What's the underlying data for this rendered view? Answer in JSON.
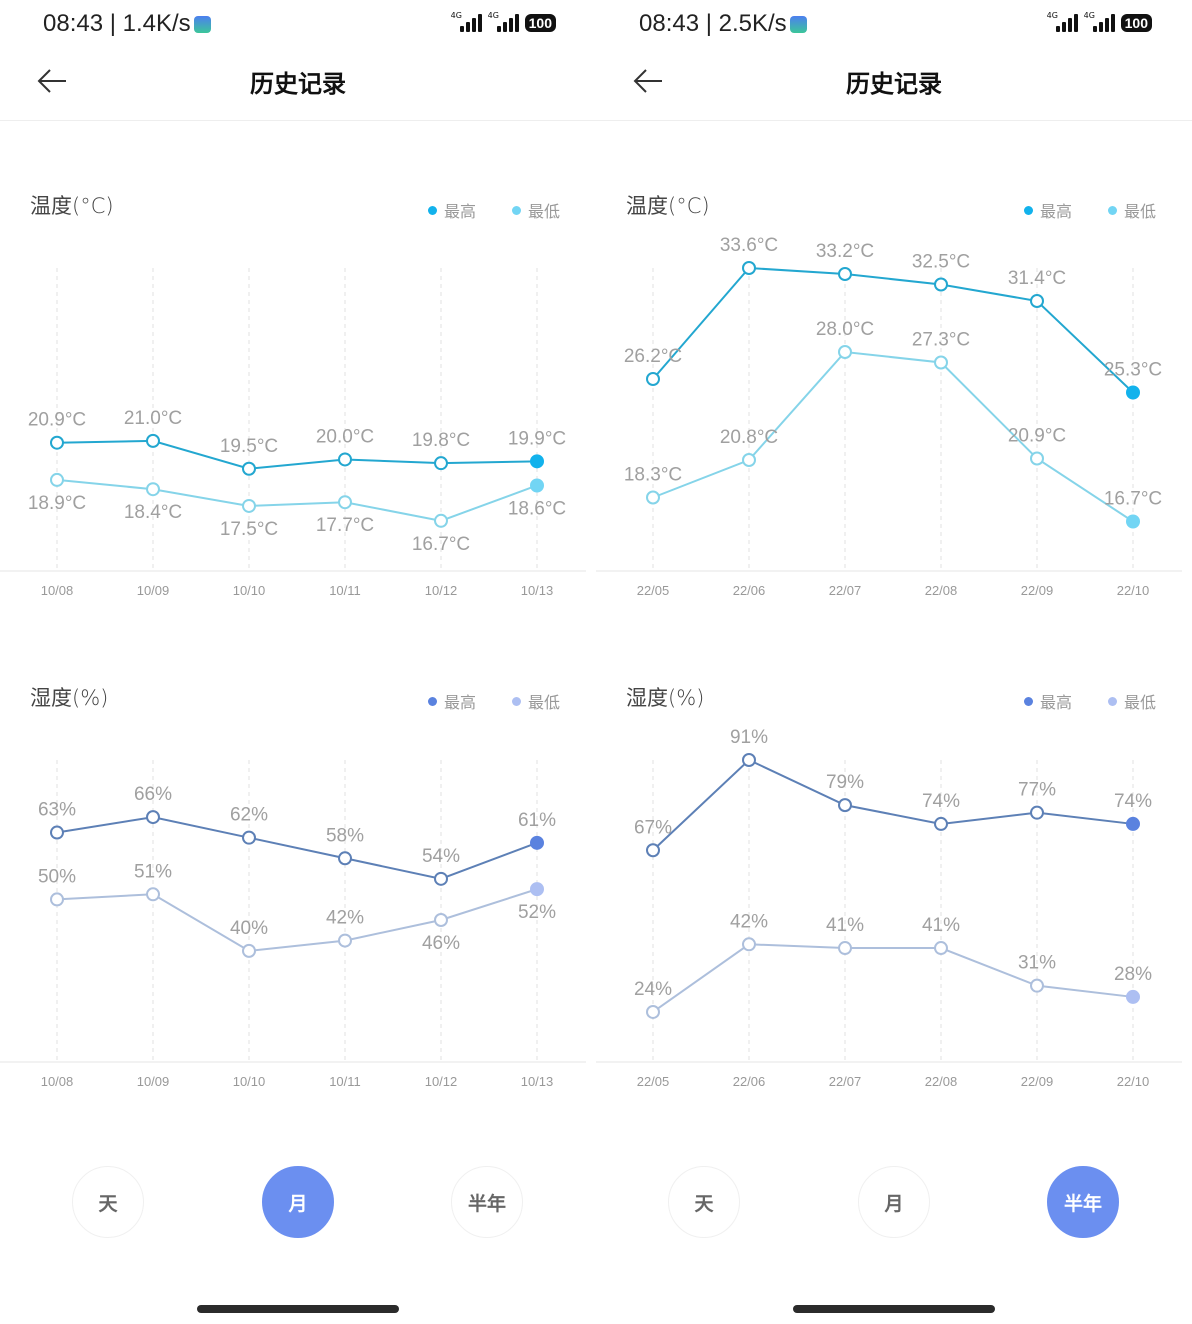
{
  "panels": [
    {
      "status": {
        "time": "08:43 | 1.4K/s",
        "network": "4G",
        "battery": "100"
      },
      "header": {
        "title": "历史记录"
      },
      "temperature": {
        "title": "温度(°C)",
        "legend": [
          "最高",
          "最低"
        ],
        "colors": {
          "max_line": "#23a7d0",
          "max_last": "#12b2ec",
          "min_line": "#85d4e9",
          "min_last": "#72d5f4"
        },
        "chart_data": {
          "type": "line",
          "categories": [
            "10/08",
            "10/09",
            "10/10",
            "10/11",
            "10/12",
            "10/13"
          ],
          "series": [
            {
              "name": "最高",
              "values": [
                20.9,
                21.0,
                19.5,
                20.0,
                19.8,
                19.9
              ],
              "labels": [
                "20.9°C",
                "21.0°C",
                "19.5°C",
                "20.0°C",
                "19.8°C",
                "19.9°C"
              ]
            },
            {
              "name": "最低",
              "values": [
                18.9,
                18.4,
                17.5,
                17.7,
                16.7,
                18.6
              ],
              "labels": [
                "18.9°C",
                "18.4°C",
                "17.5°C",
                "17.7°C",
                "16.7°C",
                "18.6°C"
              ]
            }
          ],
          "ylim": [
            14,
            30.3
          ],
          "grid": "vertical-dashed"
        }
      },
      "humidity": {
        "title": "湿度(%)",
        "legend": [
          "最高",
          "最低"
        ],
        "colors": {
          "max_line": "#5d80b6",
          "max_last": "#5a82df",
          "min_line": "#adbfdc",
          "min_last": "#adbff2"
        },
        "chart_data": {
          "type": "line",
          "categories": [
            "10/08",
            "10/09",
            "10/10",
            "10/11",
            "10/12",
            "10/13"
          ],
          "series": [
            {
              "name": "最高",
              "values": [
                63,
                66,
                62,
                58,
                54,
                61
              ],
              "labels": [
                "63%",
                "66%",
                "62%",
                "58%",
                "54%",
                "61%"
              ]
            },
            {
              "name": "最低",
              "values": [
                50,
                51,
                40,
                42,
                46,
                52
              ],
              "labels": [
                "50%",
                "51%",
                "40%",
                "42%",
                "46%",
                "52%"
              ]
            }
          ],
          "ylim": [
            18.4,
            77.1
          ],
          "grid": "vertical-dashed"
        }
      },
      "ranges": [
        "天",
        "月",
        "半年"
      ],
      "active_range": 1
    },
    {
      "status": {
        "time": "08:43 | 2.5K/s",
        "network": "4G",
        "battery": "100"
      },
      "header": {
        "title": "历史记录"
      },
      "temperature": {
        "title": "温度(°C)",
        "legend": [
          "最高",
          "最低"
        ],
        "colors": {
          "max_line": "#23a7d0",
          "max_last": "#12b2ec",
          "min_line": "#85d4e9",
          "min_last": "#72d5f4"
        },
        "chart_data": {
          "type": "line",
          "categories": [
            "22/05",
            "22/06",
            "22/07",
            "22/08",
            "22/09",
            "22/10"
          ],
          "series": [
            {
              "name": "最高",
              "values": [
                26.2,
                33.6,
                33.2,
                32.5,
                31.4,
                25.3
              ],
              "labels": [
                "26.2°C",
                "33.6°C",
                "33.2°C",
                "32.5°C",
                "31.4°C",
                "25.3°C"
              ]
            },
            {
              "name": "最低",
              "values": [
                18.3,
                20.8,
                28.0,
                27.3,
                20.9,
                16.7
              ],
              "labels": [
                "18.3°C",
                "20.8°C",
                "28.0°C",
                "27.3°C",
                "20.9°C",
                "16.7°C"
              ]
            }
          ],
          "ylim": [
            13.4,
            33.6
          ],
          "grid": "vertical-dashed"
        }
      },
      "humidity": {
        "title": "湿度(%)",
        "legend": [
          "最高",
          "最低"
        ],
        "colors": {
          "max_line": "#5d80b6",
          "max_last": "#5a82df",
          "min_line": "#adbfdc",
          "min_last": "#adbff2"
        },
        "chart_data": {
          "type": "line",
          "categories": [
            "22/05",
            "22/06",
            "22/07",
            "22/08",
            "22/09",
            "22/10"
          ],
          "series": [
            {
              "name": "最高",
              "values": [
                67,
                91,
                79,
                74,
                77,
                74
              ],
              "labels": [
                "67%",
                "91%",
                "79%",
                "74%",
                "77%",
                "74%"
              ]
            },
            {
              "name": "最低",
              "values": [
                24,
                42,
                41,
                41,
                31,
                28
              ],
              "labels": [
                "24%",
                "42%",
                "41%",
                "41%",
                "31%",
                "28%"
              ]
            }
          ],
          "ylim": [
            10.7,
            91
          ],
          "grid": "vertical-dashed"
        }
      },
      "ranges": [
        "天",
        "月",
        "半年"
      ],
      "active_range": 2
    }
  ]
}
